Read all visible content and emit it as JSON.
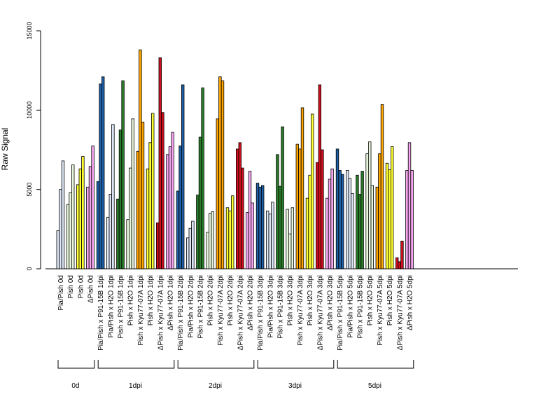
{
  "chart_data": {
    "type": "bar",
    "ylabel": "Raw Signal",
    "ylim": [
      0,
      15000
    ],
    "yticks": [
      0,
      5000,
      10000,
      15000
    ],
    "grid": false,
    "groups": [
      {
        "label": "0d",
        "bars": [
          {
            "category": "Pia/Pish 0d",
            "color": "#DCE6F5",
            "values": [
              2400,
              5000,
              6800
            ]
          },
          {
            "category": "Pish 0d",
            "color": "#E6F5DC",
            "values": [
              4050,
              4800,
              6550
            ]
          },
          {
            "category": "Pish 0d",
            "color": "#FFFF33",
            "values": [
              5300,
              6300,
              7080
            ]
          },
          {
            "category": "ΔPish 0d",
            "color": "#F5A5F0",
            "values": [
              5150,
              6450,
              7750
            ]
          }
        ]
      },
      {
        "label": "1dpi",
        "bars": [
          {
            "category": "Pia/Pish x P91-15B 1dpi",
            "color": "#1F5FA6",
            "values": [
              5500,
              11650,
              12100
            ]
          },
          {
            "category": "Pia/Pish x H2O 1dpi",
            "color": "#DCE6F5",
            "values": [
              3250,
              4700,
              9100
            ]
          },
          {
            "category": "Pish x P91-15B 1dpi",
            "color": "#2A7B2A",
            "values": [
              4400,
              8750,
              11850
            ]
          },
          {
            "category": "Pish x H2O 1dpi",
            "color": "#E6F5DC",
            "values": [
              3100,
              6350,
              9450
            ]
          },
          {
            "category": "Pish x Kyu77-07A 1dpi",
            "color": "#FFA500",
            "values": [
              7400,
              13800,
              9250
            ]
          },
          {
            "category": "Pish x H2O 1dpi",
            "color": "#FFFF33",
            "values": [
              6300,
              7950,
              9800
            ]
          },
          {
            "category": "ΔPish x Kyu77-07A 1dpi",
            "color": "#D0101E",
            "values": [
              2900,
              13300,
              9850
            ]
          },
          {
            "category": "ΔPish x H2O 1dpi",
            "color": "#F5A5F0",
            "values": [
              7200,
              7700,
              8600
            ]
          }
        ]
      },
      {
        "label": "2dpi",
        "bars": [
          {
            "category": "Pia/Pish x P91-15B 2dpi",
            "color": "#1F5FA6",
            "values": [
              4900,
              7750,
              11600
            ]
          },
          {
            "category": "Pia/Pish x H2O 2dpi",
            "color": "#DCE6F5",
            "values": [
              1950,
              2550,
              3000
            ]
          },
          {
            "category": "Pish x P91-15B 2dpi",
            "color": "#2A7B2A",
            "values": [
              4650,
              8300,
              11400
            ]
          },
          {
            "category": "Pish x H2O 2dpi",
            "color": "#E6F5DC",
            "values": [
              2300,
              3500,
              3600
            ]
          },
          {
            "category": "Pish x Kyu77-07A 2dpi",
            "color": "#FFA500",
            "values": [
              9450,
              12100,
              11850
            ]
          },
          {
            "category": "Pish x H2O 2dpi",
            "color": "#FFFF33",
            "values": [
              3850,
              3650,
              4600
            ]
          },
          {
            "category": "ΔPish x Kyu77-07A 2dpi",
            "color": "#D0101E",
            "values": [
              7550,
              7950,
              6350
            ]
          },
          {
            "category": "ΔPish x H2O 2dpi",
            "color": "#F5A5F0",
            "values": [
              3550,
              6150,
              4150
            ]
          }
        ]
      },
      {
        "label": "3dpi",
        "bars": [
          {
            "category": "Pia/Pish x P91-15B 3dpi",
            "color": "#1F5FA6",
            "values": [
              5400,
              5150,
              5250
            ]
          },
          {
            "category": "Pia/Pish x H2O 3dpi",
            "color": "#DCE6F5",
            "values": [
              3650,
              3450,
              4200
            ]
          },
          {
            "category": "Pish x P91-15B 3dpi",
            "color": "#2A7B2A",
            "values": [
              7200,
              5200,
              8950
            ]
          },
          {
            "category": "Pish x H2O 3dpi",
            "color": "#E6F5DC",
            "values": [
              3750,
              2200,
              3850
            ]
          },
          {
            "category": "Pish x Kyu77-07A 3dpi",
            "color": "#FFA500",
            "values": [
              7850,
              7550,
              10150
            ]
          },
          {
            "category": "Pish x H2O 3dpi",
            "color": "#FFFF33",
            "values": [
              4450,
              5900,
              9750
            ]
          },
          {
            "category": "ΔPish x Kyu77-07A 3dpi",
            "color": "#D0101E",
            "values": [
              6700,
              11600,
              7500
            ]
          },
          {
            "category": "ΔPish x H2O 3dpi",
            "color": "#F5A5F0",
            "values": [
              4450,
              5650,
              6300
            ]
          }
        ]
      },
      {
        "label": "5dpi",
        "bars": [
          {
            "category": "Pia/Pish x P91-15B 5dpi",
            "color": "#1F5FA6",
            "values": [
              7550,
              6200,
              5950
            ]
          },
          {
            "category": "Pia/Pish x H2O 5dpi",
            "color": "#DCE6F5",
            "values": [
              6200,
              5700,
              4750
            ]
          },
          {
            "category": "Pish x P91-15B 5dpi",
            "color": "#2A7B2A",
            "values": [
              5900,
              4700,
              6150
            ]
          },
          {
            "category": "Pish x H2O 5dpi",
            "color": "#E6F5DC",
            "values": [
              7250,
              8000,
              5250
            ]
          },
          {
            "category": "Pish x Kyu77-07A 5dpi",
            "color": "#FFA500",
            "values": [
              5150,
              7250,
              10350
            ]
          },
          {
            "category": "Pish x H2O 5dpi",
            "color": "#FFFF33",
            "values": [
              6650,
              6250,
              7700
            ]
          },
          {
            "category": "ΔPish x Kyu77-07A 5dpi",
            "color": "#D0101E",
            "values": [
              700,
              450,
              1750
            ]
          },
          {
            "category": "ΔPish x H2O 5dpi",
            "color": "#F5A5F0",
            "values": [
              6200,
              7950,
              6200
            ]
          }
        ]
      }
    ]
  }
}
